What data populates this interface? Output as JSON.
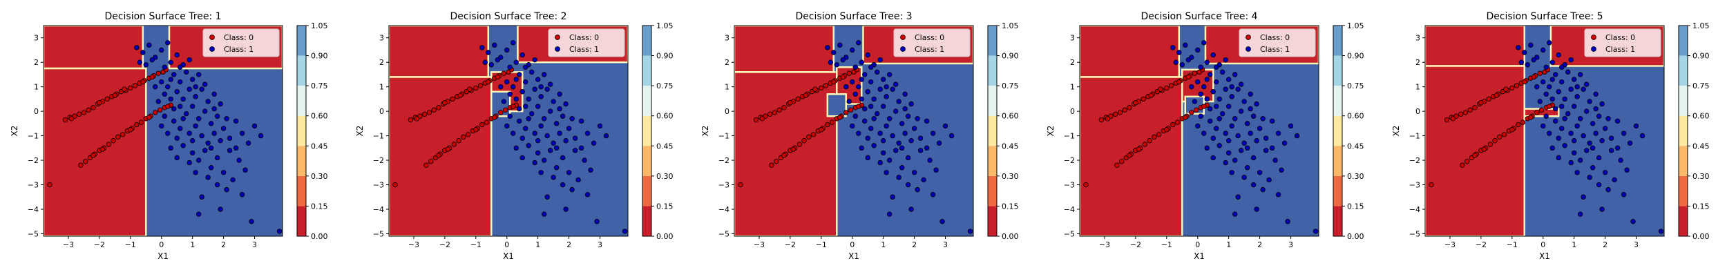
{
  "chart_data": {
    "type": "scatter",
    "subtype": "decision-surface-contour",
    "xlabel": "X1",
    "ylabel": "X2",
    "xlim": [
      -3.8,
      3.9
    ],
    "ylim": [
      -5.1,
      3.5
    ],
    "x_ticks": [
      "−3",
      "−2",
      "−1",
      "0",
      "1",
      "2",
      "3"
    ],
    "y_ticks": [
      "−5",
      "−4",
      "−3",
      "−2",
      "−1",
      "0",
      "1",
      "2",
      "3"
    ],
    "x_tick_values": [
      -3,
      -2,
      -1,
      0,
      1,
      2,
      3
    ],
    "y_tick_values": [
      -5,
      -4,
      -3,
      -2,
      -1,
      0,
      1,
      2,
      3
    ],
    "grid": false,
    "legend_position": "top-right",
    "colors": {
      "class_0_region": "#c8202a",
      "class_1_region": "#4262a8",
      "boundary_band": "#fcf6b8",
      "point_class_0": "#cc0000",
      "point_class_1": "#0000bb",
      "point_edge": "#000000"
    },
    "colorbar": {
      "ticks": [
        "0.00",
        "0.15",
        "0.30",
        "0.45",
        "0.60",
        "0.75",
        "0.90",
        "1.05"
      ],
      "levels": [
        0,
        0.15,
        0.3,
        0.45,
        0.6,
        0.75,
        0.9,
        1.05
      ],
      "colors": [
        "#c8202a",
        "#ee6a42",
        "#fbb868",
        "#fde9a0",
        "#e6f4f1",
        "#a6d6e6",
        "#6a9fcb",
        "#4262a8"
      ]
    },
    "legend": [
      {
        "label": "Class: 0",
        "color": "#cc0000"
      },
      {
        "label": "Class: 1",
        "color": "#0000bb"
      }
    ],
    "series": [
      {
        "name": "Class: 0",
        "points": [
          [
            -3.6,
            -3.0
          ],
          [
            -3.1,
            -0.35
          ],
          [
            -2.95,
            -0.25
          ],
          [
            -2.8,
            -0.2
          ],
          [
            -2.65,
            -0.12
          ],
          [
            -2.5,
            -0.05
          ],
          [
            -2.35,
            0.05
          ],
          [
            -2.2,
            0.15
          ],
          [
            -2.05,
            0.3
          ],
          [
            -1.9,
            0.4
          ],
          [
            -1.75,
            0.5
          ],
          [
            -1.6,
            0.6
          ],
          [
            -1.45,
            0.7
          ],
          [
            -1.3,
            0.8
          ],
          [
            -1.15,
            0.85
          ],
          [
            -1.0,
            0.95
          ],
          [
            -0.85,
            1.05
          ],
          [
            -0.7,
            1.15
          ],
          [
            -0.55,
            1.25
          ],
          [
            -0.4,
            1.35
          ],
          [
            -0.25,
            1.45
          ],
          [
            -0.1,
            1.55
          ],
          [
            0.05,
            1.6
          ],
          [
            0.15,
            1.7
          ],
          [
            -2.6,
            -2.2
          ],
          [
            -2.45,
            -2.05
          ],
          [
            -2.3,
            -1.9
          ],
          [
            -2.15,
            -1.75
          ],
          [
            -2.0,
            -1.6
          ],
          [
            -1.85,
            -1.5
          ],
          [
            -1.7,
            -1.35
          ],
          [
            -1.55,
            -1.2
          ],
          [
            -1.4,
            -1.05
          ],
          [
            -1.25,
            -0.95
          ],
          [
            -1.1,
            -0.8
          ],
          [
            -0.95,
            -0.7
          ],
          [
            -0.8,
            -0.55
          ],
          [
            -0.65,
            -0.45
          ],
          [
            -0.5,
            -0.3
          ],
          [
            -0.35,
            -0.2
          ],
          [
            -0.2,
            -0.05
          ],
          [
            -0.05,
            0.05
          ],
          [
            0.1,
            0.15
          ],
          [
            0.3,
            0.25
          ],
          [
            -2.9,
            -0.3
          ],
          [
            -2.0,
            0.35
          ],
          [
            -1.2,
            0.9
          ],
          [
            -0.6,
            1.2
          ],
          [
            -1.9,
            -1.55
          ],
          [
            -1.0,
            -0.75
          ],
          [
            -0.4,
            -0.25
          ],
          [
            0.2,
            0.2
          ],
          [
            -2.2,
            -1.8
          ],
          [
            -1.5,
            0.65
          ],
          [
            -0.3,
            1.4
          ]
        ]
      },
      {
        "name": "Class: 1",
        "points": [
          [
            -0.8,
            2.6
          ],
          [
            -0.6,
            2.4
          ],
          [
            -0.4,
            2.7
          ],
          [
            -0.2,
            2.2
          ],
          [
            0.0,
            2.5
          ],
          [
            0.3,
            2.0
          ],
          [
            0.5,
            2.3
          ],
          [
            0.7,
            1.9
          ],
          [
            -0.5,
            1.9
          ],
          [
            -0.3,
            2.1
          ],
          [
            0.1,
            1.8
          ],
          [
            0.4,
            1.5
          ],
          [
            0.6,
            1.2
          ],
          [
            0.8,
            1.6
          ],
          [
            1.0,
            1.3
          ],
          [
            1.2,
            1.5
          ],
          [
            0.2,
            1.0
          ],
          [
            0.5,
            0.8
          ],
          [
            0.7,
            0.5
          ],
          [
            0.9,
            0.9
          ],
          [
            1.1,
            0.6
          ],
          [
            1.3,
            0.9
          ],
          [
            1.5,
            0.4
          ],
          [
            1.7,
            0.7
          ],
          [
            0.3,
            0.5
          ],
          [
            0.6,
            0.2
          ],
          [
            0.8,
            -0.1
          ],
          [
            1.0,
            0.2
          ],
          [
            1.2,
            -0.3
          ],
          [
            1.4,
            0.0
          ],
          [
            1.6,
            -0.5
          ],
          [
            1.8,
            -0.2
          ],
          [
            0.4,
            -0.4
          ],
          [
            0.6,
            -0.7
          ],
          [
            0.9,
            -0.9
          ],
          [
            1.1,
            -0.6
          ],
          [
            1.3,
            -1.0
          ],
          [
            1.5,
            -1.3
          ],
          [
            1.7,
            -0.9
          ],
          [
            1.9,
            -1.2
          ],
          [
            0.7,
            -1.4
          ],
          [
            1.0,
            -1.7
          ],
          [
            1.2,
            -2.0
          ],
          [
            1.4,
            -1.6
          ],
          [
            1.6,
            -2.3
          ],
          [
            1.8,
            -1.9
          ],
          [
            2.0,
            -2.5
          ],
          [
            2.2,
            -1.6
          ],
          [
            0.5,
            -1.1
          ],
          [
            0.2,
            -0.9
          ],
          [
            0.0,
            -0.6
          ],
          [
            -0.1,
            0.4
          ],
          [
            0.1,
            0.7
          ],
          [
            0.3,
            1.3
          ],
          [
            2.0,
            -0.7
          ],
          [
            2.2,
            -1.1
          ],
          [
            2.4,
            -0.4
          ],
          [
            2.6,
            -0.9
          ],
          [
            2.8,
            -1.3
          ],
          [
            2.5,
            -2.0
          ],
          [
            2.3,
            -2.8
          ],
          [
            2.1,
            -3.2
          ],
          [
            1.8,
            -3.0
          ],
          [
            1.5,
            -2.7
          ],
          [
            1.3,
            -3.5
          ],
          [
            1.9,
            -4.0
          ],
          [
            2.6,
            -3.4
          ],
          [
            1.1,
            -2.5
          ],
          [
            0.9,
            -2.1
          ],
          [
            2.9,
            -4.5
          ],
          [
            3.2,
            -1.0
          ],
          [
            3.0,
            -0.6
          ],
          [
            0.6,
            1.8
          ],
          [
            0.9,
            2.1
          ],
          [
            1.1,
            1.0
          ],
          [
            1.4,
            1.1
          ],
          [
            0.4,
            0.1
          ],
          [
            0.7,
            -0.3
          ],
          [
            1.0,
            -1.2
          ],
          [
            1.6,
            -1.5
          ],
          [
            2.1,
            -0.3
          ],
          [
            1.7,
            0.1
          ],
          [
            1.9,
            0.3
          ],
          [
            0.1,
            -0.2
          ],
          [
            0.3,
            -1.5
          ],
          [
            0.5,
            -1.9
          ],
          [
            2.4,
            -1.5
          ],
          [
            2.7,
            -2.4
          ],
          [
            1.2,
            -4.2
          ],
          [
            3.8,
            -4.9
          ],
          [
            -0.2,
            1.0
          ],
          [
            0.0,
            1.2
          ],
          [
            0.2,
            2.8
          ],
          [
            -0.7,
            2.0
          ]
        ]
      }
    ],
    "panels": [
      {
        "title": "Decision Surface Tree: 1",
        "class_0_regions": [
          [
            -3.8,
            1.75,
            -0.6,
            3.5
          ],
          [
            0.25,
            1.75,
            3.9,
            3.5
          ],
          [
            -3.8,
            -5.1,
            -0.5,
            1.75
          ]
        ],
        "class_1_regions": []
      },
      {
        "title": "Decision Surface Tree: 2",
        "class_0_regions": [
          [
            -3.8,
            1.4,
            -0.6,
            3.5
          ],
          [
            0.35,
            2.0,
            3.9,
            3.5
          ],
          [
            -3.8,
            -5.1,
            -0.5,
            1.4
          ],
          [
            -0.5,
            0.0,
            0.5,
            1.6
          ]
        ],
        "class_1_regions": [
          [
            -0.5,
            -0.2,
            0.1,
            0.8
          ]
        ]
      },
      {
        "title": "Decision Surface Tree: 3",
        "class_0_regions": [
          [
            -3.8,
            1.6,
            -0.6,
            3.5
          ],
          [
            0.35,
            1.95,
            3.9,
            3.5
          ],
          [
            -3.8,
            -5.1,
            -0.5,
            1.6
          ],
          [
            -0.5,
            0.3,
            0.3,
            1.8
          ]
        ],
        "class_1_regions": [
          [
            -0.8,
            -0.2,
            -0.2,
            0.7
          ]
        ]
      },
      {
        "title": "Decision Surface Tree: 4",
        "class_0_regions": [
          [
            -3.8,
            1.4,
            -0.6,
            3.5
          ],
          [
            0.25,
            1.95,
            3.9,
            3.5
          ],
          [
            -3.8,
            -5.1,
            -0.5,
            1.4
          ],
          [
            -0.5,
            0.4,
            0.5,
            1.7
          ]
        ],
        "class_1_regions": [
          [
            -0.4,
            -0.1,
            0.2,
            0.6
          ]
        ]
      },
      {
        "title": "Decision Surface Tree: 5",
        "class_0_regions": [
          [
            -3.8,
            1.85,
            -0.6,
            3.5
          ],
          [
            0.25,
            1.85,
            3.9,
            3.5
          ],
          [
            -3.8,
            -5.1,
            -0.6,
            1.85
          ],
          [
            -0.6,
            -0.2,
            0.5,
            0.1
          ]
        ],
        "class_1_regions": []
      }
    ]
  }
}
